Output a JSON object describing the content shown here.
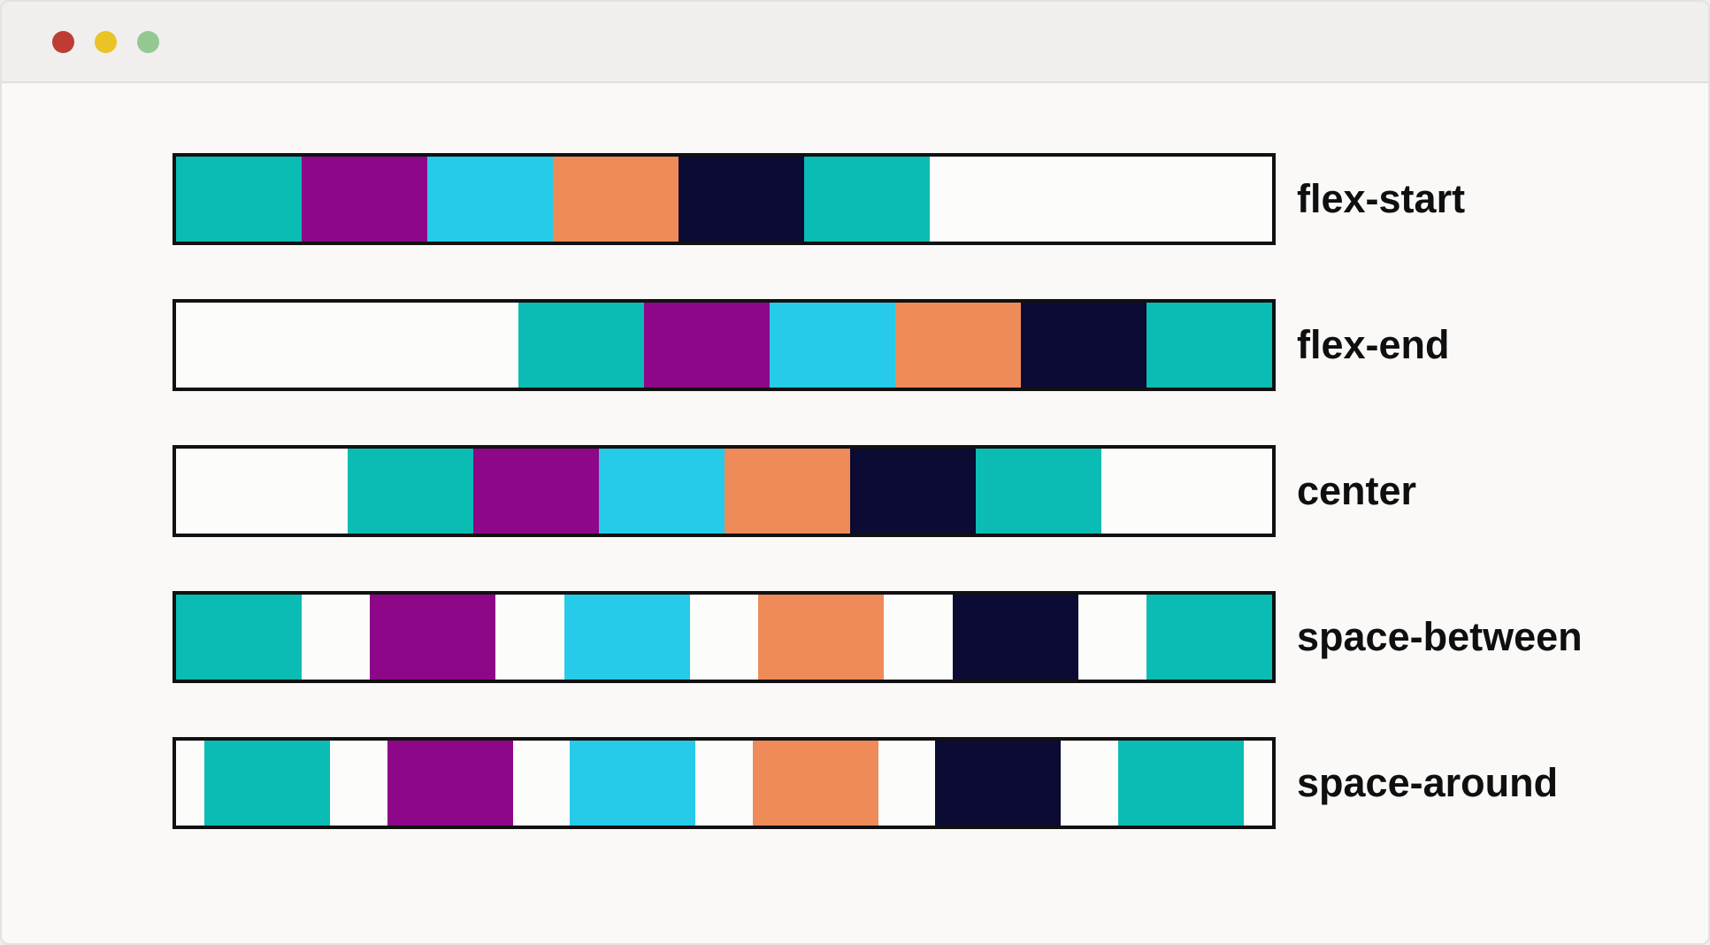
{
  "window": {
    "controls": [
      {
        "name": "close",
        "color": "#bd3c33"
      },
      {
        "name": "minimize",
        "color": "#eac326"
      },
      {
        "name": "maximize",
        "color": "#93c893"
      }
    ]
  },
  "palette": {
    "teal": "#0bbcb4",
    "purple": "#8e0788",
    "cyan": "#26cbe9",
    "orange": "#ee8b59",
    "navy": "#0b0b33"
  },
  "container_style": {
    "border_color": "#111111",
    "background": "#fcfcfb"
  },
  "rows": [
    {
      "label": "flex-start",
      "justify_content": "flex-start",
      "items": [
        "teal",
        "purple",
        "cyan",
        "orange",
        "navy",
        "teal"
      ]
    },
    {
      "label": "flex-end",
      "justify_content": "flex-end",
      "items": [
        "teal",
        "purple",
        "cyan",
        "orange",
        "navy",
        "teal"
      ]
    },
    {
      "label": "center",
      "justify_content": "center",
      "items": [
        "teal",
        "purple",
        "cyan",
        "orange",
        "navy",
        "teal"
      ]
    },
    {
      "label": "space-between",
      "justify_content": "space-between",
      "items": [
        "teal",
        "purple",
        "cyan",
        "orange",
        "navy",
        "teal"
      ]
    },
    {
      "label": "space-around",
      "justify_content": "space-around",
      "items": [
        "teal",
        "purple",
        "cyan",
        "orange",
        "navy",
        "teal"
      ]
    }
  ]
}
